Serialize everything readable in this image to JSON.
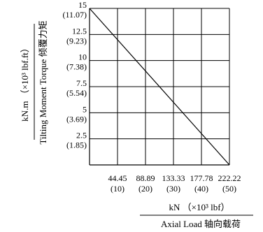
{
  "chart_data": {
    "type": "line",
    "x_ticks": [
      44.45,
      88.89,
      133.33,
      177.78,
      222.22
    ],
    "x_tick_labels": [
      "44.45",
      "88.89",
      "133.33",
      "177.78",
      "222.22"
    ],
    "x_tick_labels_imperial": [
      "(10)",
      "(20)",
      "(30)",
      "(40)",
      "(50)"
    ],
    "y_ticks": [
      2.5,
      5,
      7.5,
      10,
      12.5,
      15
    ],
    "y_tick_labels": [
      "2.5",
      "5",
      "7.5",
      "10",
      "12.5",
      "15"
    ],
    "y_tick_labels_imperial": [
      "(1.85)",
      "(3.69)",
      "(5.54)",
      "(7.38)",
      "(9.23)",
      "(11.07)"
    ],
    "xlim": [
      0,
      222.22
    ],
    "ylim": [
      0,
      15
    ],
    "grid": true,
    "series": [
      {
        "x": [
          0,
          222.22
        ],
        "y": [
          15,
          0
        ]
      }
    ],
    "xlabel_unit": "kN （×10³ lbf）",
    "xlabel": "Axial Load 轴向载荷",
    "ylabel_unit": "kN.m （×10³ lbf.ft）",
    "ylabel": "Tilting Moment Torque 倾覆力矩"
  }
}
